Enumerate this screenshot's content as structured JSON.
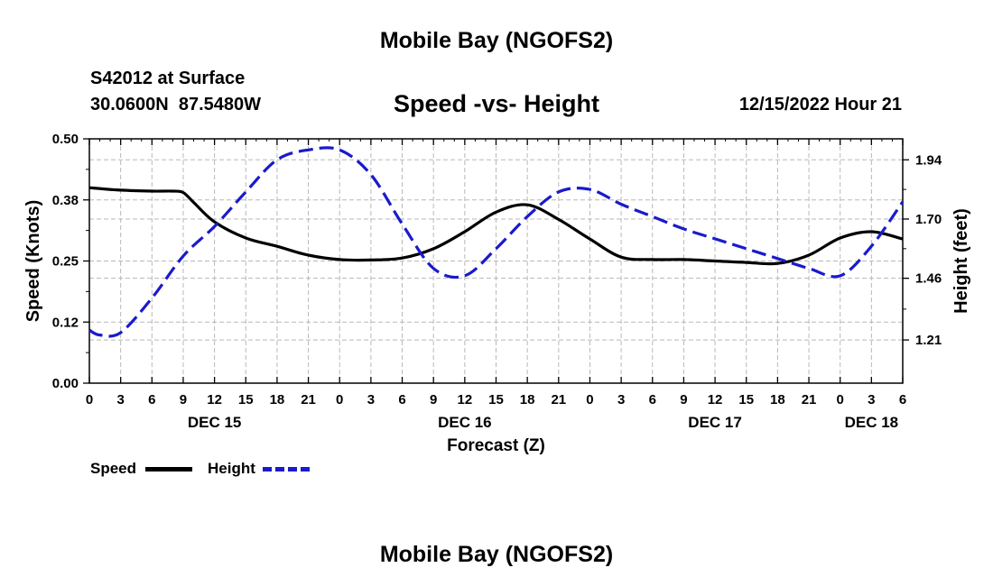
{
  "header": {
    "title": "Mobile Bay (NGOFS2)",
    "station": "S42012 at Surface",
    "coords": "30.0600N  87.5480W",
    "subtitle": "Speed -vs- Height",
    "timestamp": "12/15/2022 Hour 21"
  },
  "footer": {
    "title": "Mobile Bay (NGOFS2)"
  },
  "legend": {
    "speed_label": "Speed",
    "height_label": "Height"
  },
  "colors": {
    "speed": "#000000",
    "height": "#1a1acc",
    "grid": "#b8b8b8"
  },
  "chart_data": {
    "type": "line",
    "title": "Speed -vs- Height",
    "xlabel": "Forecast (Z)",
    "ylabel": "Speed (Knots)",
    "y2label": "Height (feet)",
    "x_unit": "hours since Dec 15 00Z",
    "xlim": [
      0,
      78
    ],
    "ylim": [
      0,
      0.5
    ],
    "y2lim": [
      1.035,
      2.025
    ],
    "x_ticks": [
      0,
      3,
      6,
      9,
      12,
      15,
      18,
      21,
      24,
      27,
      30,
      33,
      36,
      39,
      42,
      45,
      48,
      51,
      54,
      57,
      60,
      63,
      66,
      69,
      72,
      75,
      78
    ],
    "x_tick_labels": [
      "0",
      "3",
      "6",
      "9",
      "12",
      "15",
      "18",
      "21",
      "0",
      "3",
      "6",
      "9",
      "12",
      "15",
      "18",
      "21",
      "0",
      "3",
      "6",
      "9",
      "12",
      "15",
      "18",
      "21",
      "0",
      "3",
      "6"
    ],
    "date_labels": [
      {
        "x": 12,
        "label": "DEC 15"
      },
      {
        "x": 36,
        "label": "DEC 16"
      },
      {
        "x": 60,
        "label": "DEC 17"
      },
      {
        "x": 75,
        "label": "DEC 18"
      }
    ],
    "y_ticks": [
      0.0,
      0.125,
      0.25,
      0.375,
      0.5
    ],
    "y_tick_labels": [
      "0.00",
      "0.12",
      "0.25",
      "0.38",
      "0.50"
    ],
    "y2_ticks": [
      1.21,
      1.46,
      1.7,
      1.94
    ],
    "y2_tick_labels": [
      "1.21",
      "1.46",
      "1.70",
      "1.94"
    ],
    "grid": true,
    "series": [
      {
        "name": "Speed",
        "axis": "left",
        "style": "solid",
        "x": [
          0,
          3,
          6,
          8,
          9,
          10,
          12,
          15,
          18,
          21,
          24,
          27,
          30,
          33,
          36,
          39,
          42,
          45,
          48,
          51,
          54,
          57,
          60,
          63,
          66,
          69,
          72,
          75,
          78
        ],
        "values": [
          0.4,
          0.395,
          0.393,
          0.393,
          0.39,
          0.37,
          0.33,
          0.297,
          0.28,
          0.262,
          0.253,
          0.252,
          0.256,
          0.275,
          0.31,
          0.35,
          0.365,
          0.335,
          0.295,
          0.258,
          0.253,
          0.253,
          0.25,
          0.247,
          0.245,
          0.262,
          0.297,
          0.31,
          0.295
        ]
      },
      {
        "name": "Height",
        "axis": "right",
        "style": "dashed",
        "x": [
          0,
          1,
          3,
          6,
          9,
          12,
          15,
          18,
          21,
          24,
          27,
          30,
          33,
          36,
          39,
          42,
          45,
          48,
          51,
          54,
          57,
          60,
          63,
          66,
          69,
          72,
          75,
          78
        ],
        "values": [
          1.25,
          1.23,
          1.24,
          1.38,
          1.55,
          1.67,
          1.81,
          1.94,
          1.98,
          1.98,
          1.88,
          1.68,
          1.5,
          1.47,
          1.58,
          1.71,
          1.81,
          1.82,
          1.76,
          1.71,
          1.66,
          1.62,
          1.58,
          1.54,
          1.5,
          1.47,
          1.59,
          1.77
        ]
      }
    ]
  }
}
